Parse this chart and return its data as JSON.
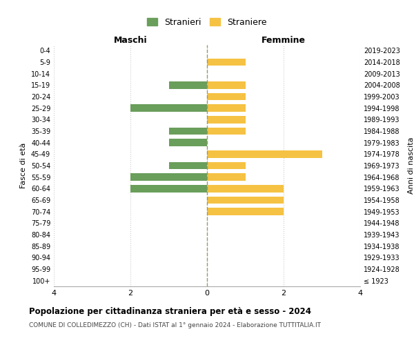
{
  "age_groups": [
    "100+",
    "95-99",
    "90-94",
    "85-89",
    "80-84",
    "75-79",
    "70-74",
    "65-69",
    "60-64",
    "55-59",
    "50-54",
    "45-49",
    "40-44",
    "35-39",
    "30-34",
    "25-29",
    "20-24",
    "15-19",
    "10-14",
    "5-9",
    "0-4"
  ],
  "birth_years": [
    "≤ 1923",
    "1924-1928",
    "1929-1933",
    "1934-1938",
    "1939-1943",
    "1944-1948",
    "1949-1953",
    "1954-1958",
    "1959-1963",
    "1964-1968",
    "1969-1973",
    "1974-1978",
    "1979-1983",
    "1984-1988",
    "1989-1993",
    "1994-1998",
    "1999-2003",
    "2004-2008",
    "2009-2013",
    "2014-2018",
    "2019-2023"
  ],
  "maschi": [
    0,
    0,
    0,
    0,
    0,
    0,
    0,
    0,
    2,
    2,
    1,
    0,
    1,
    1,
    0,
    2,
    0,
    1,
    0,
    0,
    0
  ],
  "femmine": [
    0,
    0,
    0,
    0,
    0,
    0,
    2,
    2,
    2,
    1,
    1,
    3,
    0,
    1,
    1,
    1,
    1,
    1,
    0,
    1,
    0
  ],
  "color_maschi": "#6a9e5b",
  "color_femmine": "#f5c243",
  "title": "Popolazione per cittadinanza straniera per età e sesso - 2024",
  "subtitle": "COMUNE DI COLLEDIMEZZO (CH) - Dati ISTAT al 1° gennaio 2024 - Elaborazione TUTTITALIA.IT",
  "label_maschi": "Maschi",
  "label_femmine": "Femmine",
  "ylabel_left": "Fasce di età",
  "ylabel_right": "Anni di nascita",
  "legend_maschi": "Stranieri",
  "legend_femmine": "Straniere",
  "xlim": 4,
  "background_color": "#ffffff",
  "grid_color": "#cccccc",
  "grid_linestyle": ":",
  "center_line_color": "#999966"
}
